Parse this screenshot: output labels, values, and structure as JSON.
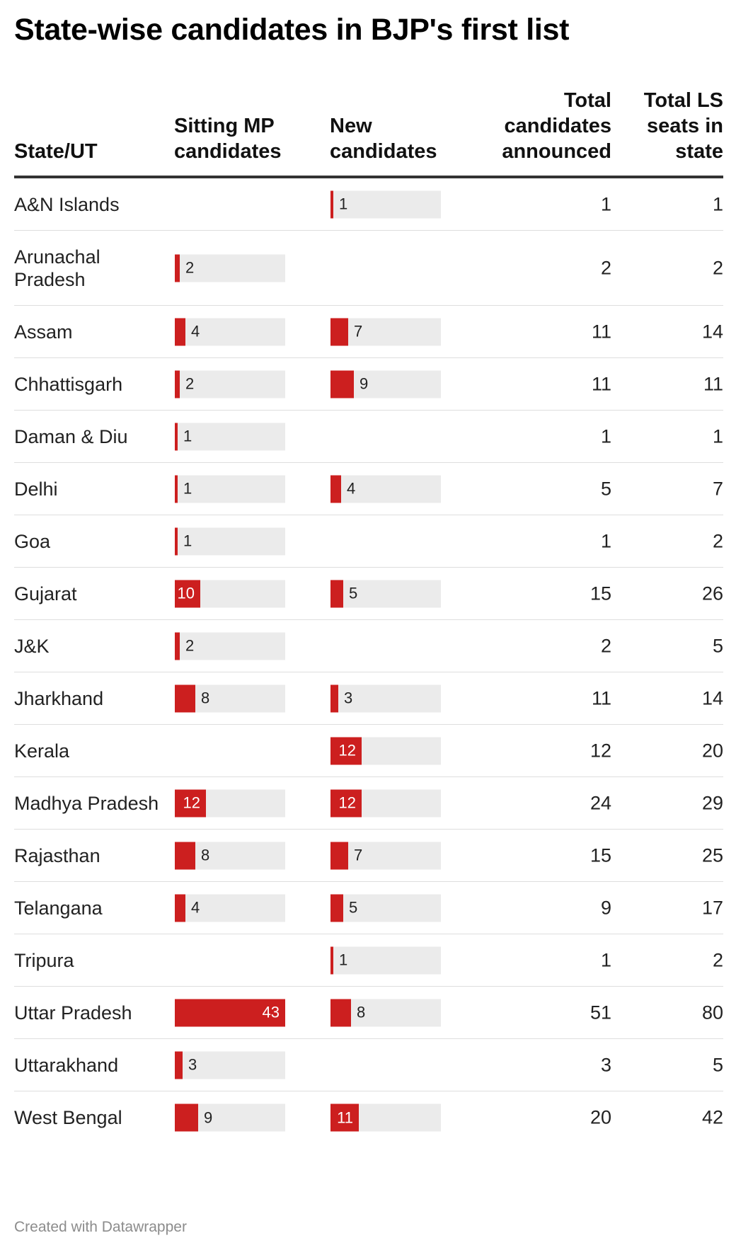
{
  "title": "State-wise candidates in BJP's first list",
  "columns": {
    "state": "State/UT",
    "sitting": "Sitting MP candidates",
    "new": "New candidates",
    "total": "Total candidates announced",
    "seats": "Total LS seats in state"
  },
  "colors": {
    "bar": "#cc1f1f",
    "bar_background": "#ebebeb",
    "rule": "#333333"
  },
  "chart_data": {
    "type": "table",
    "bar_scale_max": 43,
    "rows": [
      {
        "state": "A&N Islands",
        "sitting": null,
        "new": 1,
        "total": 1,
        "seats": 1
      },
      {
        "state": "Arunachal Pradesh",
        "sitting": 2,
        "new": null,
        "total": 2,
        "seats": 2
      },
      {
        "state": "Assam",
        "sitting": 4,
        "new": 7,
        "total": 11,
        "seats": 14
      },
      {
        "state": "Chhattisgarh",
        "sitting": 2,
        "new": 9,
        "total": 11,
        "seats": 11
      },
      {
        "state": "Daman & Diu",
        "sitting": 1,
        "new": null,
        "total": 1,
        "seats": 1
      },
      {
        "state": "Delhi",
        "sitting": 1,
        "new": 4,
        "total": 5,
        "seats": 7
      },
      {
        "state": "Goa",
        "sitting": 1,
        "new": null,
        "total": 1,
        "seats": 2
      },
      {
        "state": "Gujarat",
        "sitting": 10,
        "new": 5,
        "total": 15,
        "seats": 26
      },
      {
        "state": "J&K",
        "sitting": 2,
        "new": null,
        "total": 2,
        "seats": 5
      },
      {
        "state": "Jharkhand",
        "sitting": 8,
        "new": 3,
        "total": 11,
        "seats": 14
      },
      {
        "state": "Kerala",
        "sitting": null,
        "new": 12,
        "total": 12,
        "seats": 20
      },
      {
        "state": "Madhya Pradesh",
        "sitting": 12,
        "new": 12,
        "total": 24,
        "seats": 29
      },
      {
        "state": "Rajasthan",
        "sitting": 8,
        "new": 7,
        "total": 15,
        "seats": 25
      },
      {
        "state": "Telangana",
        "sitting": 4,
        "new": 5,
        "total": 9,
        "seats": 17
      },
      {
        "state": "Tripura",
        "sitting": null,
        "new": 1,
        "total": 1,
        "seats": 2
      },
      {
        "state": "Uttar Pradesh",
        "sitting": 43,
        "new": 8,
        "total": 51,
        "seats": 80
      },
      {
        "state": "Uttarakhand",
        "sitting": 3,
        "new": null,
        "total": 3,
        "seats": 5
      },
      {
        "state": "West Bengal",
        "sitting": 9,
        "new": 11,
        "total": 20,
        "seats": 42
      }
    ]
  },
  "footer": "Created with Datawrapper"
}
